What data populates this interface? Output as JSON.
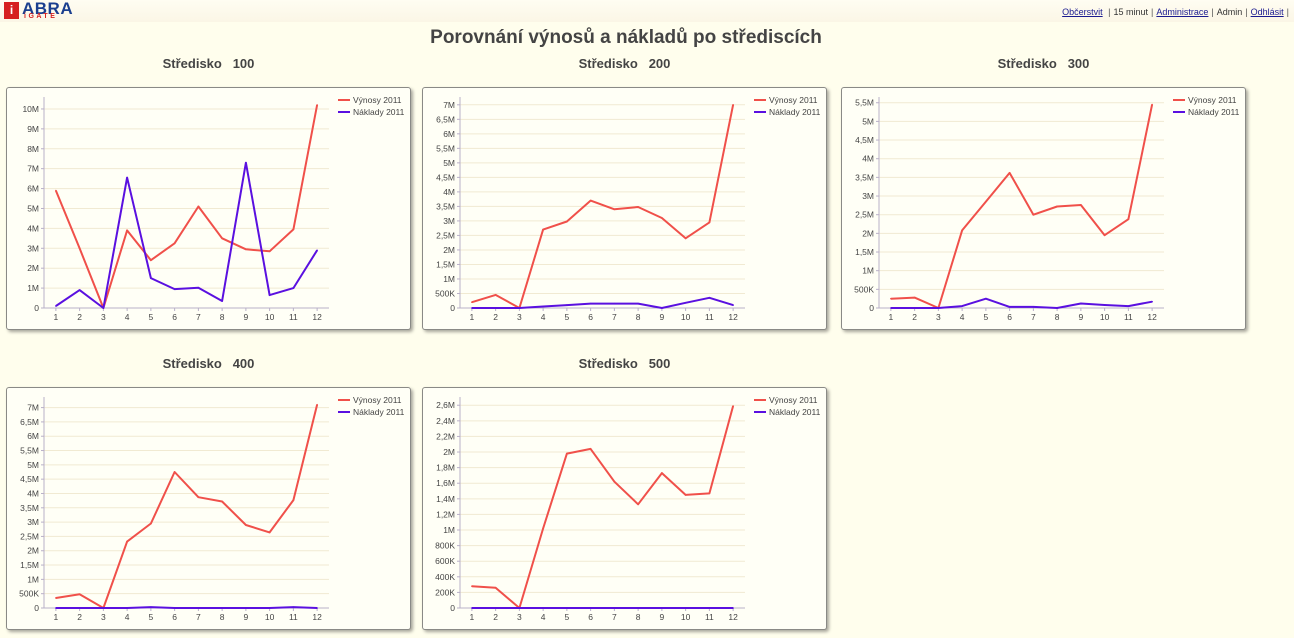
{
  "header": {
    "logo_text": "ABRA",
    "logo_sub": "iGATE",
    "refresh_label": "Občerstvit",
    "interval_text": "15 minut",
    "admin_link_label": "Administrace",
    "user_text": "Admin",
    "logout_label": "Odhlásit"
  },
  "page": {
    "title": "Porovnání výnosů a nákladů po střediscích"
  },
  "colors": {
    "revenue": "#f0504a",
    "costs": "#5a10e0"
  },
  "chart_data": [
    {
      "type": "line",
      "title": "Středisko   100",
      "x": [
        1,
        2,
        3,
        4,
        5,
        6,
        7,
        8,
        9,
        10,
        11,
        12
      ],
      "series": [
        {
          "name": "Výnosy 2011",
          "values": [
            5900000,
            3000000,
            0,
            3900000,
            2400000,
            3250000,
            5100000,
            3500000,
            2950000,
            2850000,
            3950000,
            10200000
          ]
        },
        {
          "name": "Náklady 2011",
          "values": [
            100000,
            900000,
            0,
            6550000,
            1500000,
            950000,
            1020000,
            350000,
            7300000,
            650000,
            1000000,
            2900000
          ]
        }
      ],
      "ylim": [
        0,
        10500000
      ],
      "yticks": [
        0,
        1000000,
        2000000,
        3000000,
        4000000,
        5000000,
        6000000,
        7000000,
        8000000,
        9000000,
        10000000
      ],
      "ytick_labels": [
        "0",
        "1M",
        "2M",
        "3M",
        "4M",
        "5M",
        "6M",
        "7M",
        "8M",
        "9M",
        "10M"
      ]
    },
    {
      "type": "line",
      "title": "Středisko   200",
      "x": [
        1,
        2,
        3,
        4,
        5,
        6,
        7,
        8,
        9,
        10,
        11,
        12
      ],
      "series": [
        {
          "name": "Výnosy 2011",
          "values": [
            200000,
            450000,
            0,
            2700000,
            2980000,
            3700000,
            3400000,
            3480000,
            3100000,
            2400000,
            2950000,
            7000000
          ]
        },
        {
          "name": "Náklady 2011",
          "values": [
            0,
            0,
            0,
            50000,
            100000,
            150000,
            150000,
            150000,
            0,
            180000,
            350000,
            100000
          ]
        }
      ],
      "ylim": [
        0,
        7200000
      ],
      "yticks": [
        0,
        500000,
        1000000,
        1500000,
        2000000,
        2500000,
        3000000,
        3500000,
        4000000,
        4500000,
        5000000,
        5500000,
        6000000,
        6500000,
        7000000
      ],
      "ytick_labels": [
        "0",
        "500K",
        "1M",
        "1,5M",
        "2M",
        "2,5M",
        "3M",
        "3,5M",
        "4M",
        "4,5M",
        "5M",
        "5,5M",
        "6M",
        "6,5M",
        "7M"
      ]
    },
    {
      "type": "line",
      "title": "Středisko   300",
      "x": [
        1,
        2,
        3,
        4,
        5,
        6,
        7,
        8,
        9,
        10,
        11,
        12
      ],
      "series": [
        {
          "name": "Výnosy 2011",
          "values": [
            250000,
            280000,
            0,
            2080000,
            2850000,
            3620000,
            2500000,
            2720000,
            2760000,
            1950000,
            2380000,
            5450000
          ]
        },
        {
          "name": "Náklady 2011",
          "values": [
            0,
            0,
            0,
            50000,
            250000,
            30000,
            30000,
            0,
            120000,
            80000,
            50000,
            170000
          ]
        }
      ],
      "ylim": [
        0,
        5600000
      ],
      "yticks": [
        0,
        500000,
        1000000,
        1500000,
        2000000,
        2500000,
        3000000,
        3500000,
        4000000,
        4500000,
        5000000,
        5500000
      ],
      "ytick_labels": [
        "0",
        "500K",
        "1M",
        "1,5M",
        "2M",
        "2,5M",
        "3M",
        "3,5M",
        "4M",
        "4,5M",
        "5M",
        "5,5M"
      ]
    },
    {
      "type": "line",
      "title": "Středisko   400",
      "x": [
        1,
        2,
        3,
        4,
        5,
        6,
        7,
        8,
        9,
        10,
        11,
        12
      ],
      "series": [
        {
          "name": "Výnosy 2011",
          "values": [
            350000,
            480000,
            0,
            2320000,
            2950000,
            4750000,
            3870000,
            3720000,
            2900000,
            2640000,
            3770000,
            7100000
          ]
        },
        {
          "name": "Náklady 2011",
          "values": [
            0,
            0,
            0,
            0,
            30000,
            0,
            0,
            0,
            0,
            0,
            30000,
            0
          ]
        }
      ],
      "ylim": [
        0,
        7300000
      ],
      "yticks": [
        0,
        500000,
        1000000,
        1500000,
        2000000,
        2500000,
        3000000,
        3500000,
        4000000,
        4500000,
        5000000,
        5500000,
        6000000,
        6500000,
        7000000
      ],
      "ytick_labels": [
        "0",
        "500K",
        "1M",
        "1,5M",
        "2M",
        "2,5M",
        "3M",
        "3,5M",
        "4M",
        "4,5M",
        "5M",
        "5,5M",
        "6M",
        "6,5M",
        "7M"
      ]
    },
    {
      "type": "line",
      "title": "Středisko   500",
      "x": [
        1,
        2,
        3,
        4,
        5,
        6,
        7,
        8,
        9,
        10,
        11,
        12
      ],
      "series": [
        {
          "name": "Výnosy 2011",
          "values": [
            280000,
            260000,
            0,
            1020000,
            1980000,
            2040000,
            1620000,
            1330000,
            1730000,
            1450000,
            1470000,
            2590000
          ]
        },
        {
          "name": "Náklady 2011",
          "values": [
            0,
            0,
            0,
            0,
            0,
            0,
            0,
            0,
            0,
            0,
            0,
            0
          ]
        }
      ],
      "ylim": [
        0,
        2680000
      ],
      "yticks": [
        0,
        200000,
        400000,
        600000,
        800000,
        1000000,
        1200000,
        1400000,
        1600000,
        1800000,
        2000000,
        2200000,
        2400000,
        2600000
      ],
      "ytick_labels": [
        "0",
        "200K",
        "400K",
        "600K",
        "800K",
        "1M",
        "1,2M",
        "1,4M",
        "1,6M",
        "1,8M",
        "2M",
        "2,2M",
        "2,4M",
        "2,6M"
      ]
    }
  ]
}
